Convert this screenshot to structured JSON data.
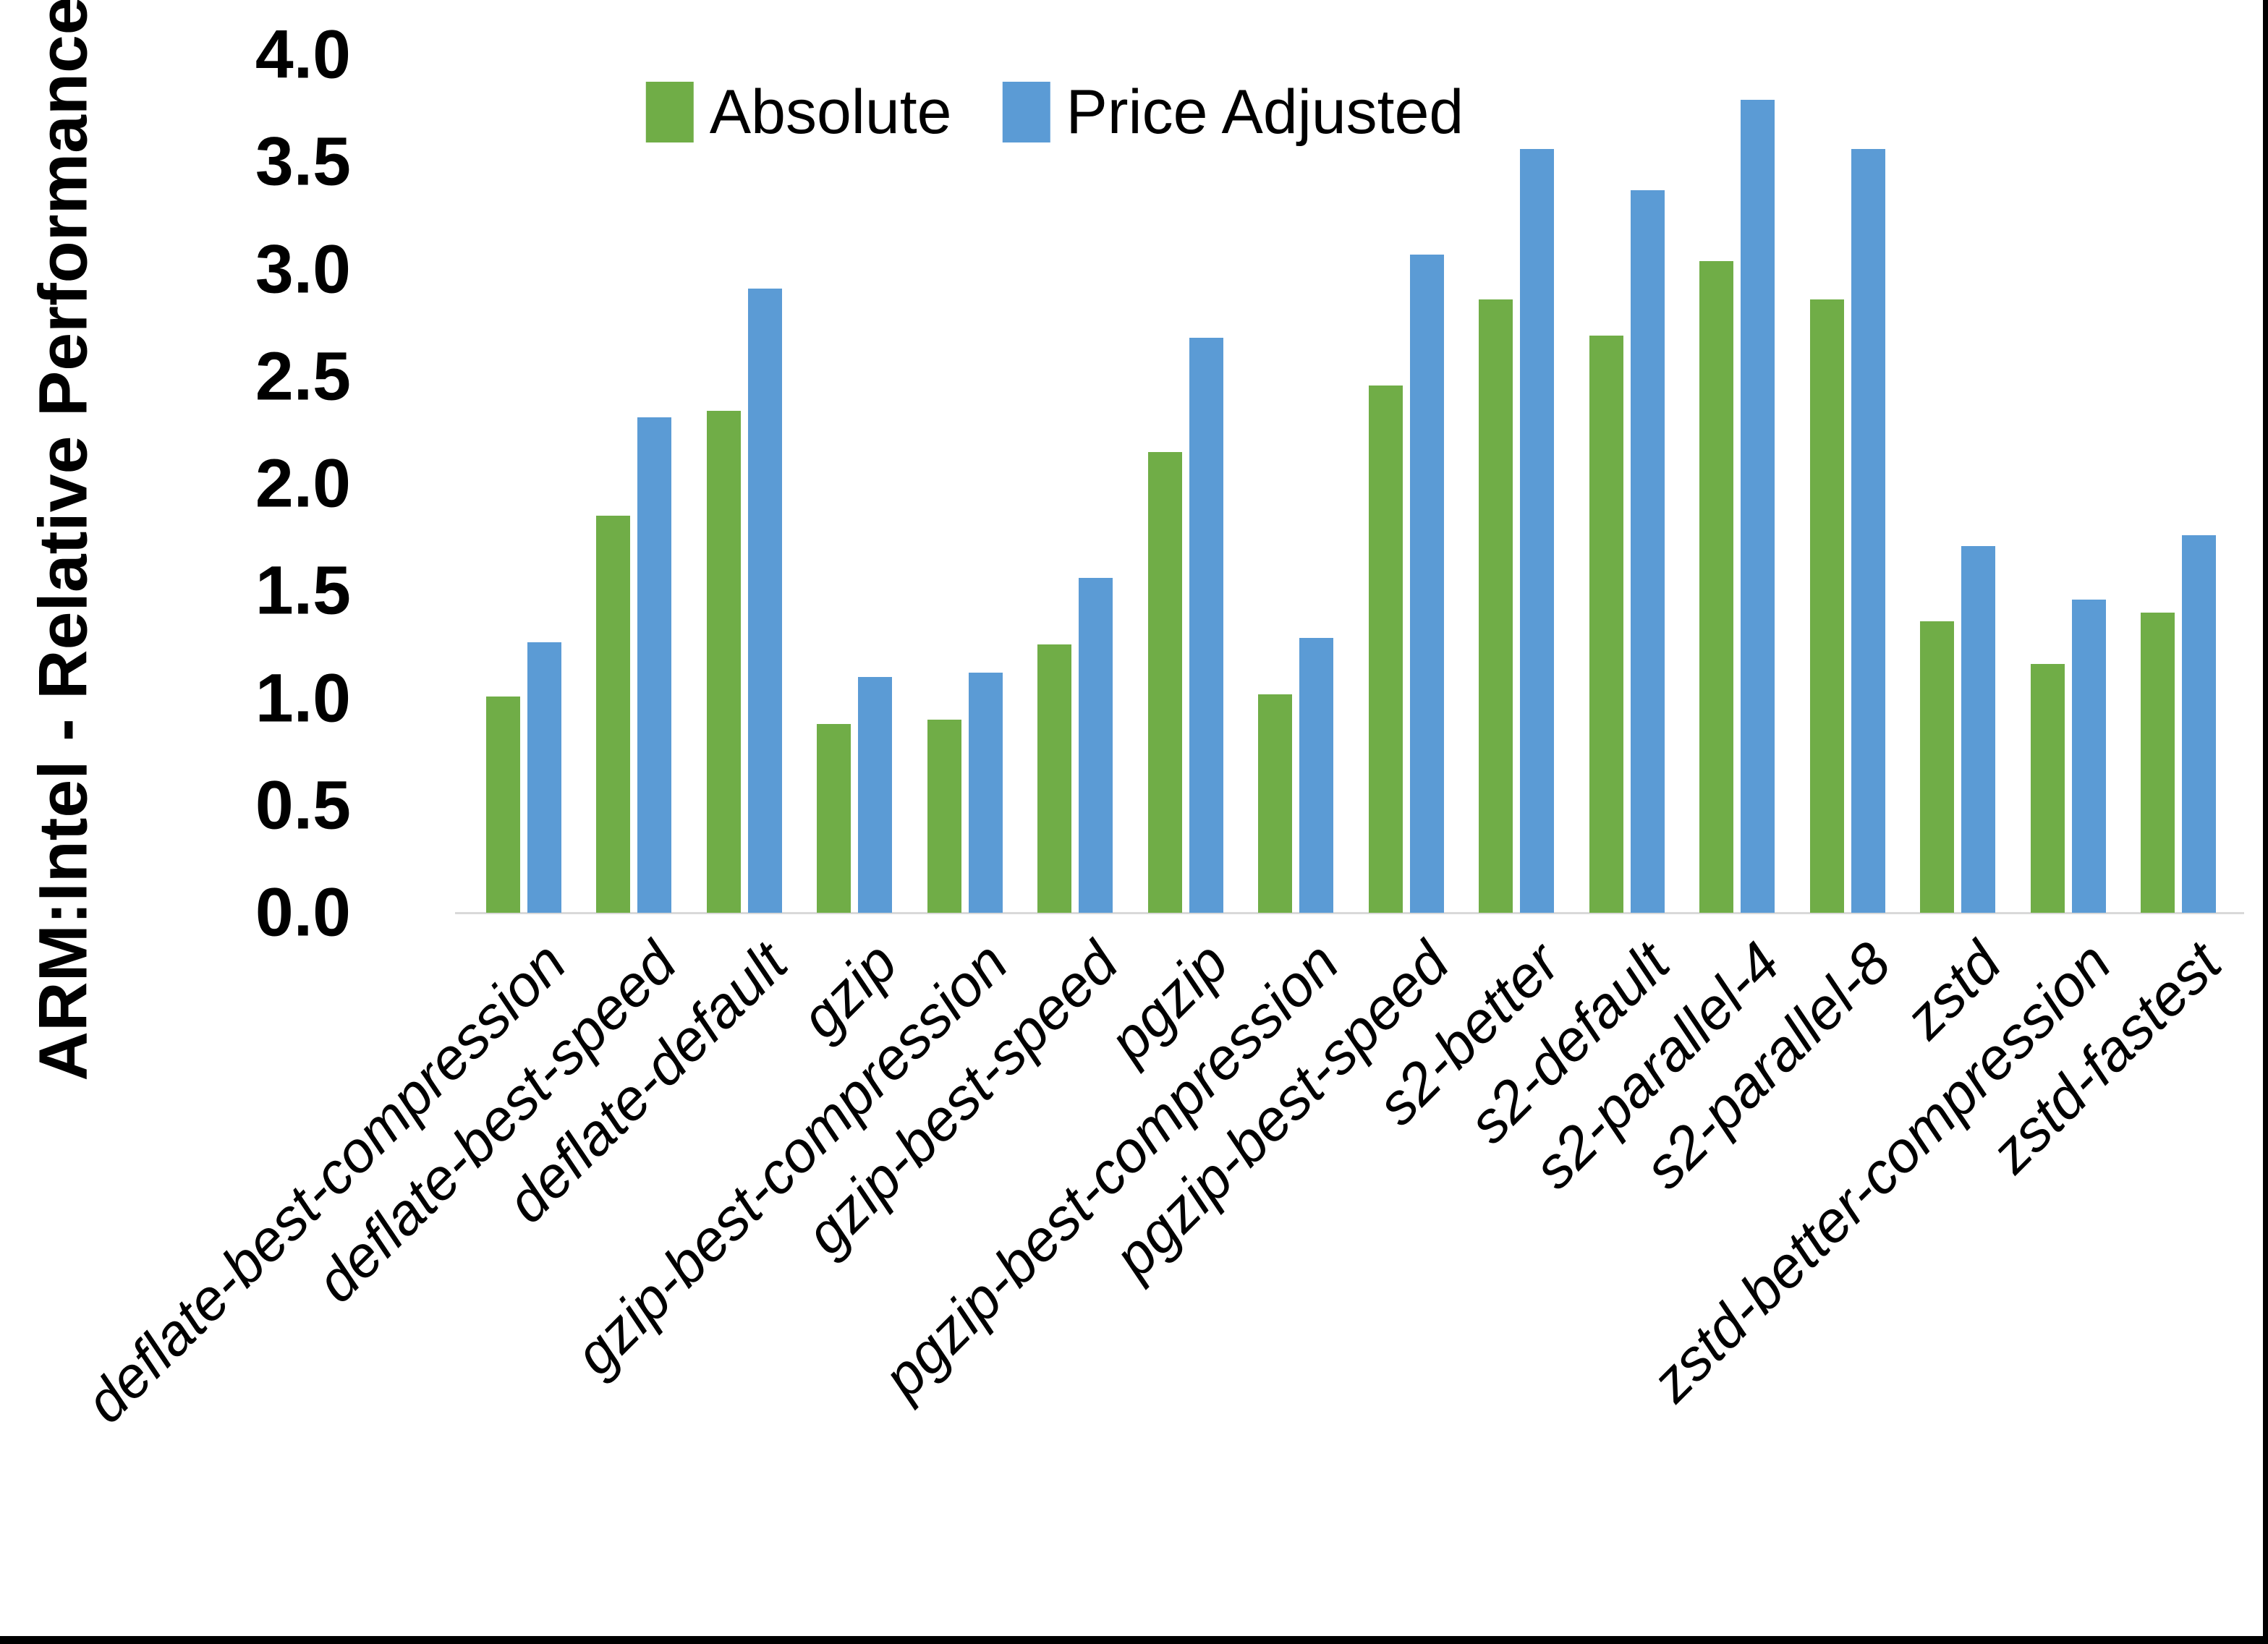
{
  "y_axis": {
    "title": "ARM:Intel - Relative Performance",
    "tick_labels": [
      "0.0",
      "0.5",
      "1.0",
      "1.5",
      "2.0",
      "2.5",
      "3.0",
      "3.5",
      "4.0"
    ]
  },
  "colors": {
    "absolute": "#70AD47",
    "price_adjusted": "#5B9BD5",
    "axis_line": "#D9D9D9",
    "text": "#000000"
  },
  "chart_data": {
    "type": "bar",
    "title": "",
    "xlabel": "",
    "ylabel": "ARM:Intel - Relative Performance",
    "ylim": [
      0,
      4.0
    ],
    "y_tick_step": 0.5,
    "grid": false,
    "legend_position": "top-center",
    "categories": [
      "deflate-best-compression",
      "deflate-best-speed",
      "deflate-default",
      "gzip",
      "gzip-best-compression",
      "gzip-best-speed",
      "pgzip",
      "pgzip-best-compression",
      "pgzip-best-speed",
      "s2-better",
      "s2-default",
      "s2-parallel-4",
      "s2-parallel-8",
      "zstd",
      "zstd-better-compression",
      "zstd-fastest"
    ],
    "series": [
      {
        "name": "Absolute",
        "color": "#70AD47",
        "values": [
          1.01,
          1.85,
          2.34,
          0.88,
          0.9,
          1.25,
          2.15,
          1.02,
          2.46,
          2.86,
          2.69,
          3.04,
          2.86,
          1.36,
          1.16,
          1.4
        ]
      },
      {
        "name": "Price Adjusted",
        "color": "#5B9BD5",
        "values": [
          1.26,
          2.31,
          2.91,
          1.1,
          1.12,
          1.56,
          2.68,
          1.28,
          3.07,
          3.56,
          3.37,
          3.79,
          3.56,
          1.71,
          1.46,
          1.76
        ]
      }
    ]
  }
}
